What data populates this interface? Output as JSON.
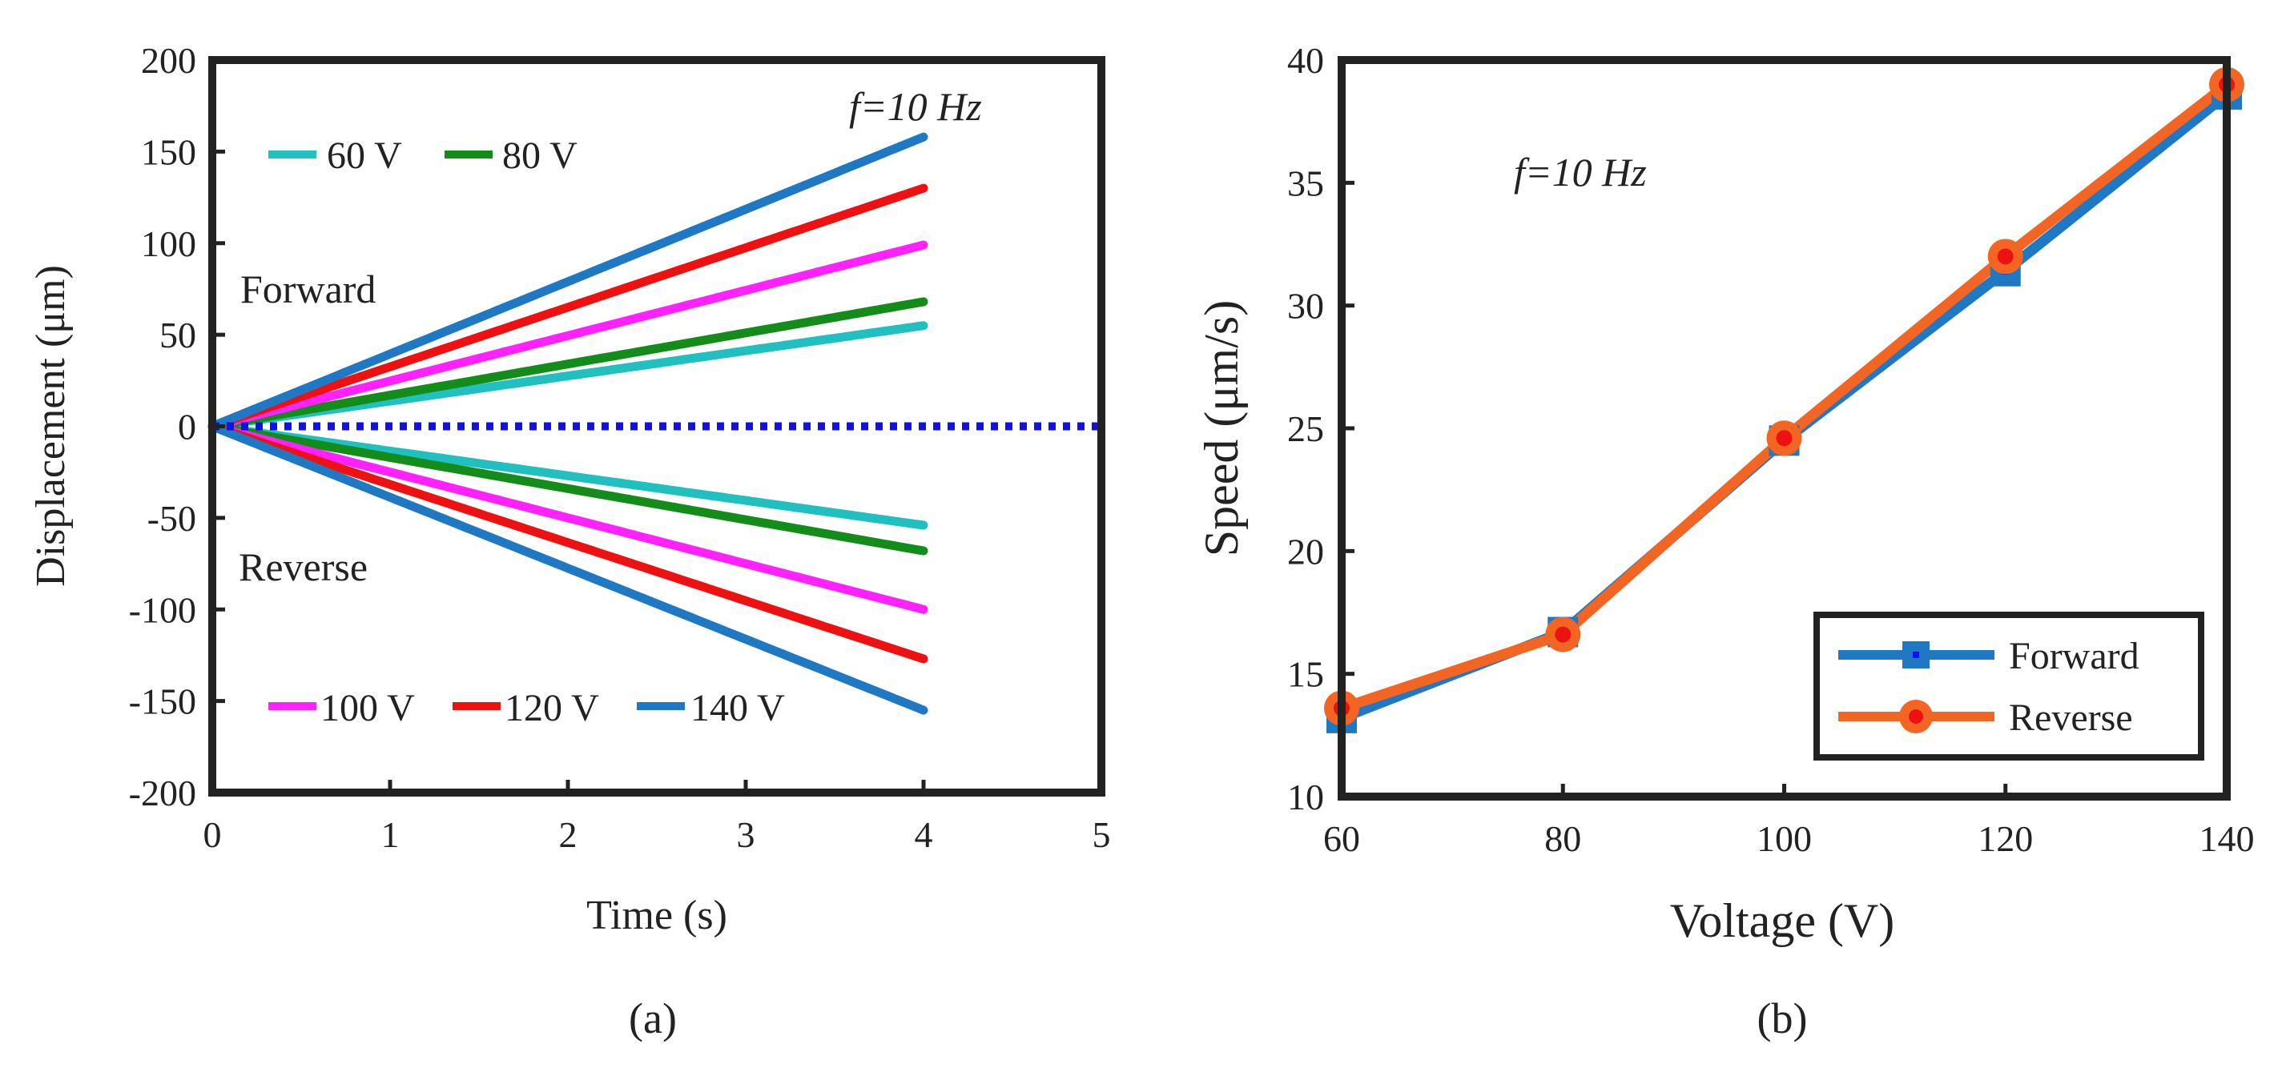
{
  "chart_data": [
    {
      "type": "line",
      "panel_label": "(a)",
      "xlabel": "Time (s)",
      "ylabel": "Displacement (μm)",
      "xlim": [
        0,
        5
      ],
      "ylim": [
        -200,
        200
      ],
      "xticks": [
        0,
        1,
        2,
        3,
        4,
        5
      ],
      "yticks": [
        -200,
        -150,
        -100,
        -50,
        0,
        50,
        100,
        150,
        200
      ],
      "annotations": {
        "frequency": "f=10 Hz",
        "forward": "Forward",
        "reverse": "Reverse"
      },
      "annotation_colors": {
        "forward": "#1a1aff",
        "reverse": "#ff1a1a"
      },
      "legend_top": [
        "60 V",
        "80 V"
      ],
      "legend_bottom": [
        "100 V",
        "120 V",
        "140 V"
      ],
      "series": [
        {
          "name": "60 V",
          "color": "#20c0c0",
          "x_start": 0,
          "x_end": 4,
          "forward_end": 55,
          "reverse_end": -54
        },
        {
          "name": "80 V",
          "color": "#138c1a",
          "x_start": 0,
          "x_end": 4,
          "forward_end": 68,
          "reverse_end": -68
        },
        {
          "name": "100 V",
          "color": "#ff22ff",
          "x_start": 0,
          "x_end": 4,
          "forward_end": 99,
          "reverse_end": -100
        },
        {
          "name": "120 V",
          "color": "#ee1111",
          "x_start": 0,
          "x_end": 4,
          "forward_end": 130,
          "reverse_end": -127
        },
        {
          "name": "140 V",
          "color": "#1f78c4",
          "x_start": 0,
          "x_end": 4,
          "forward_end": 158,
          "reverse_end": -155
        }
      ],
      "zero_line": {
        "y": 0,
        "x_start": 0,
        "x_end": 5,
        "color": "#1010ee",
        "style": "dotted"
      }
    },
    {
      "type": "line",
      "panel_label": "(b)",
      "xlabel": "Voltage (V)",
      "ylabel": "Speed (μm/s)",
      "xlim": [
        60,
        140
      ],
      "ylim": [
        10,
        40
      ],
      "xticks": [
        60,
        80,
        100,
        120,
        140
      ],
      "yticks": [
        10,
        15,
        20,
        25,
        30,
        35,
        40
      ],
      "annotation": "f=10 Hz",
      "legend_position": "bottom-right",
      "x": [
        60,
        80,
        100,
        120,
        140
      ],
      "series": [
        {
          "name": "Forward",
          "color": "#1f78c4",
          "marker": "square",
          "values": [
            13.2,
            16.7,
            24.5,
            31.4,
            38.6
          ]
        },
        {
          "name": "Reverse",
          "color": "#f26522",
          "marker": "circle",
          "marker_center": "#ee1111",
          "values": [
            13.6,
            16.6,
            24.6,
            32.0,
            39.0
          ]
        }
      ]
    }
  ]
}
